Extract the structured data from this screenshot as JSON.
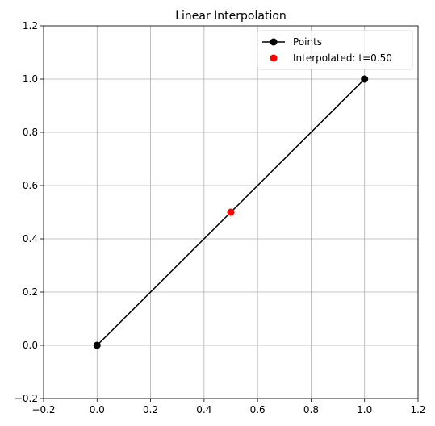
{
  "chart_data": {
    "type": "line",
    "title": "Linear Interpolation",
    "xlabel": "",
    "ylabel": "",
    "xlim": [
      -0.2,
      1.2
    ],
    "ylim": [
      -0.2,
      1.2
    ],
    "grid": true,
    "xticks": [
      -0.2,
      0.0,
      0.2,
      0.4,
      0.6,
      0.8,
      1.0,
      1.2
    ],
    "yticks": [
      -0.2,
      0.0,
      0.2,
      0.4,
      0.6,
      0.8,
      1.0,
      1.2
    ],
    "xtick_labels": [
      "−0.2",
      "0.0",
      "0.2",
      "0.4",
      "0.6",
      "0.8",
      "1.0",
      "1.2"
    ],
    "ytick_labels": [
      "−0.2",
      "0.0",
      "0.2",
      "0.4",
      "0.6",
      "0.8",
      "1.0",
      "1.2"
    ],
    "series": [
      {
        "name": "Points",
        "style": "line-with-markers",
        "color": "#000000",
        "x": [
          0.0,
          1.0
        ],
        "y": [
          0.0,
          1.0
        ]
      },
      {
        "name": "Interpolated: t=0.50",
        "style": "markers",
        "color": "#ff0000",
        "x": [
          0.5
        ],
        "y": [
          0.5
        ]
      }
    ],
    "legend": {
      "location": "top-right",
      "entries": [
        "Points",
        "Interpolated: t=0.50"
      ]
    }
  }
}
